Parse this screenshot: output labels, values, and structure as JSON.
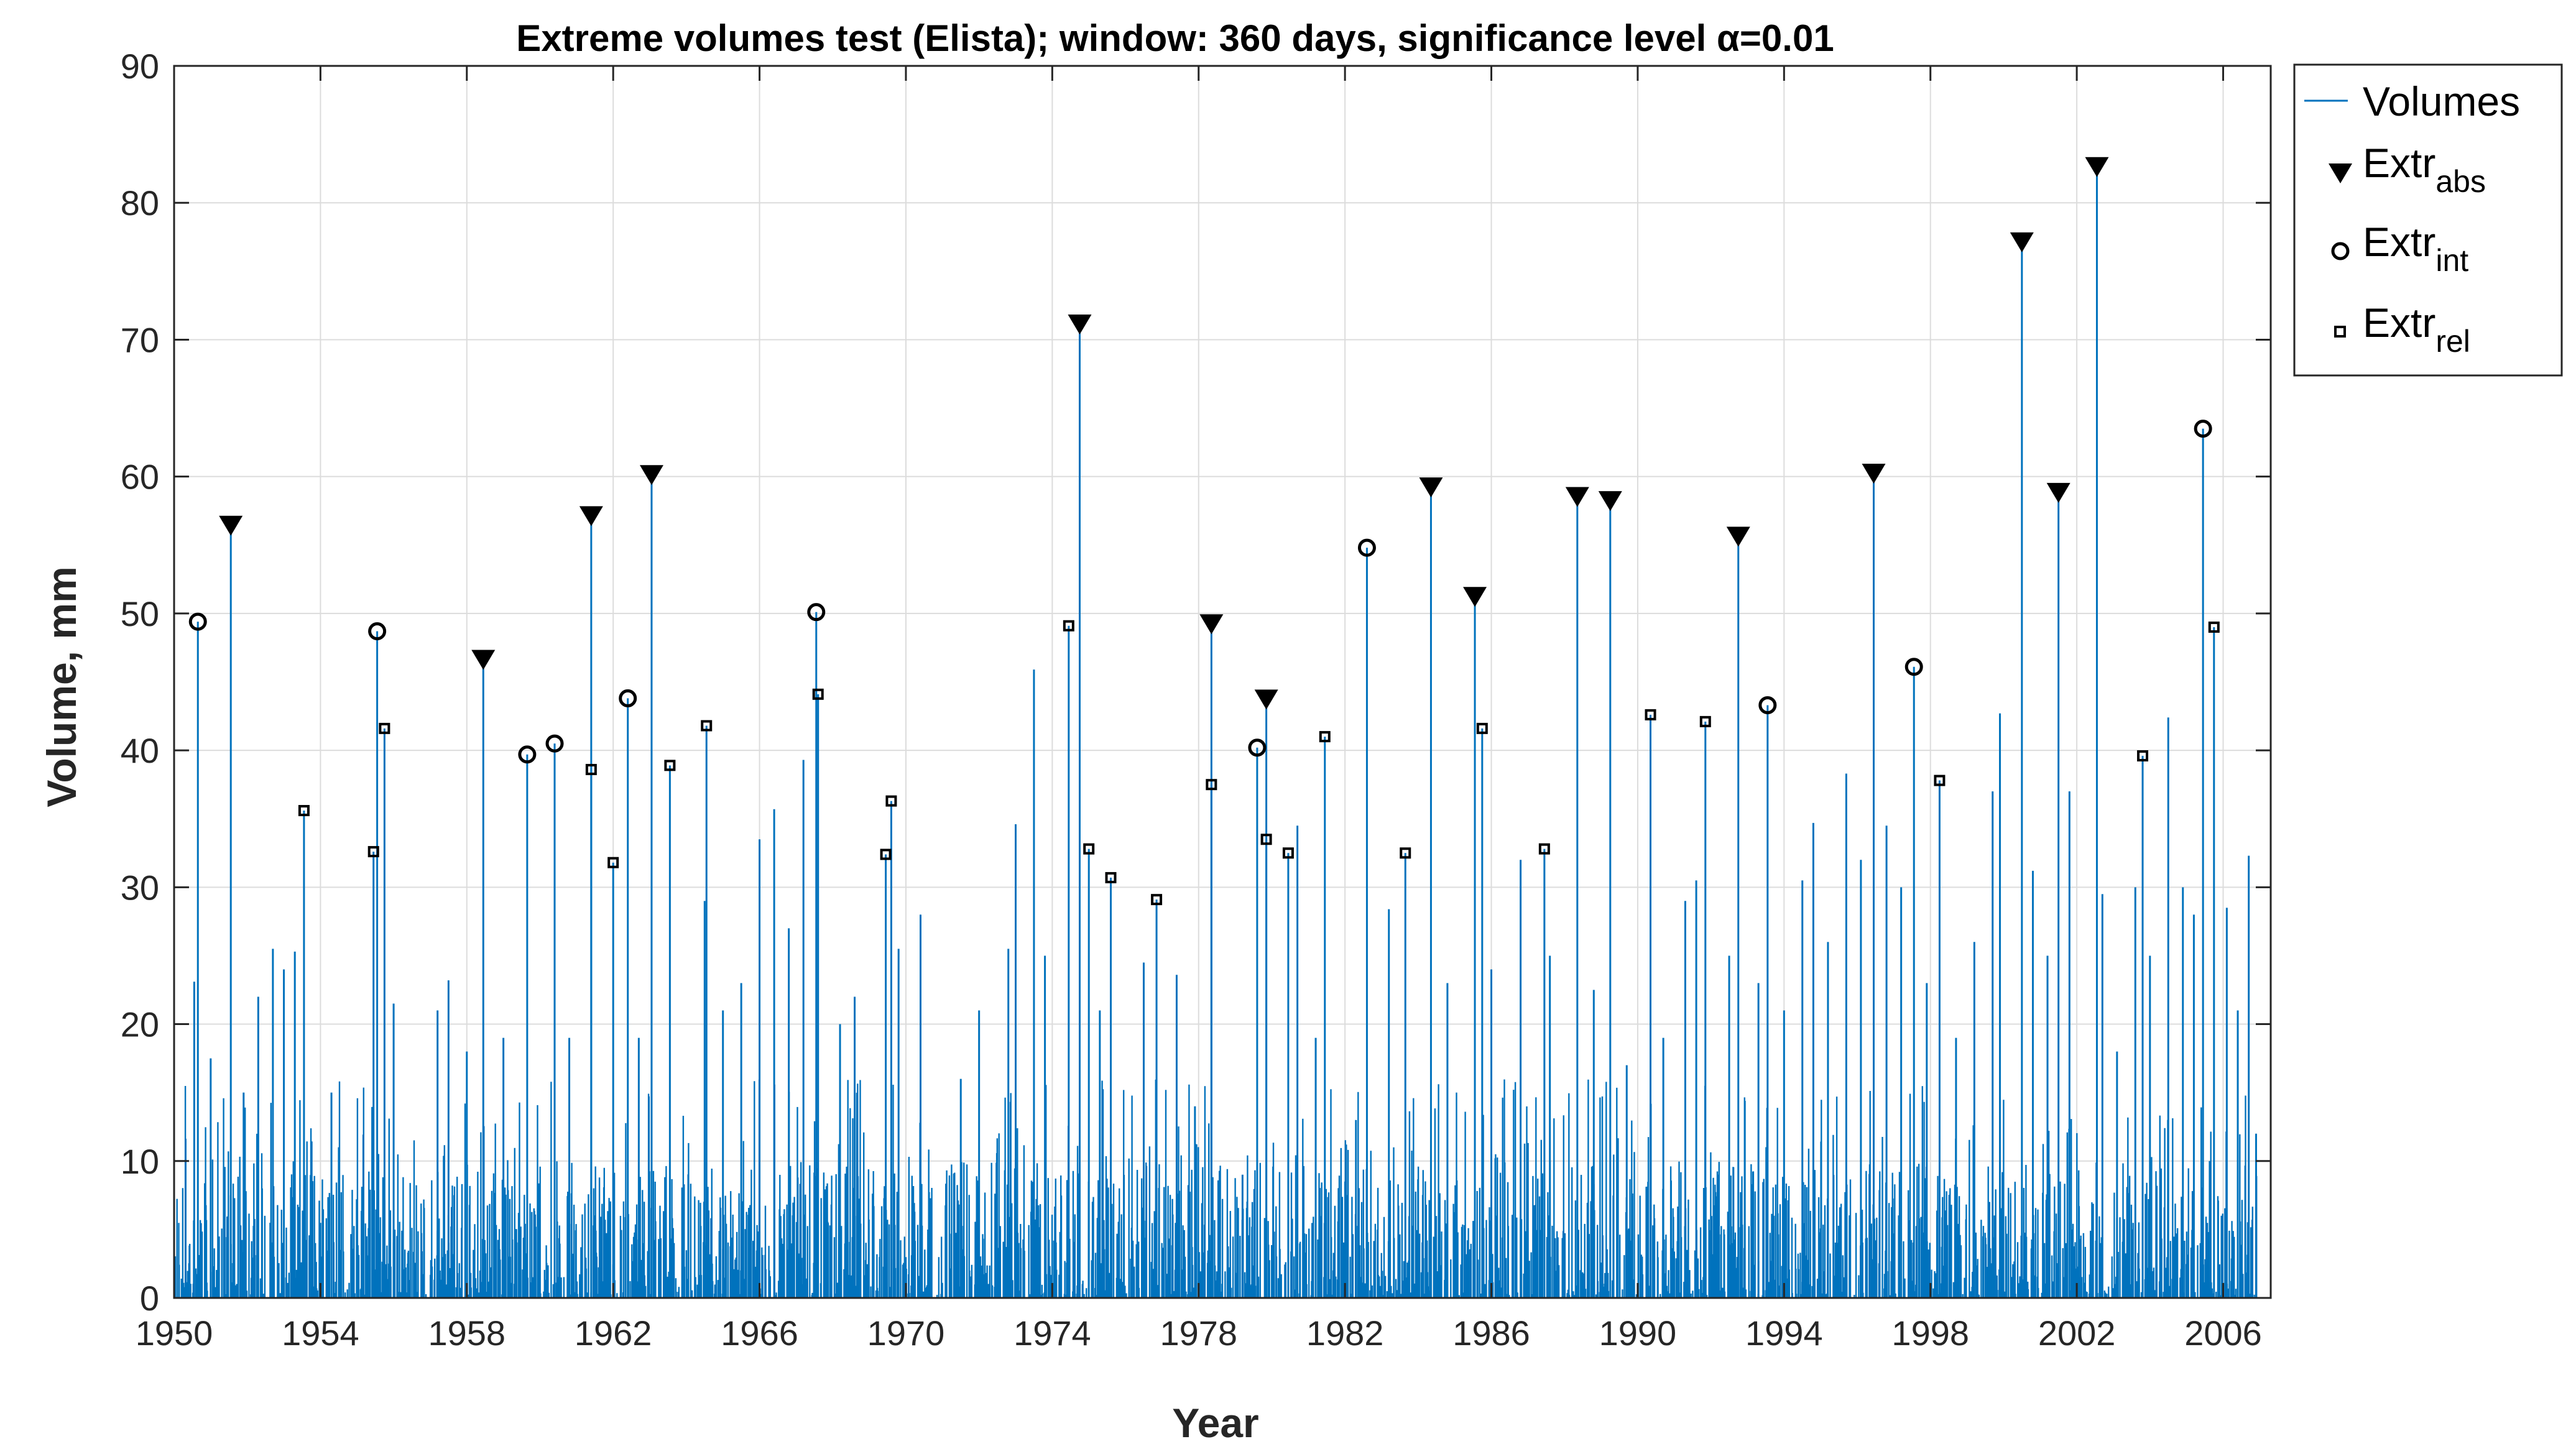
{
  "chart_data": {
    "type": "line",
    "title": "Extreme volumes test (Elista); window: 360 days, significance level α=0.01",
    "xlabel": "Year",
    "ylabel": "Volume, mm",
    "xlim": [
      1950,
      2007.3
    ],
    "ylim": [
      0,
      90
    ],
    "xticks": [
      1950,
      1954,
      1958,
      1962,
      1966,
      1970,
      1974,
      1978,
      1982,
      1986,
      1990,
      1994,
      1998,
      2002,
      2006
    ],
    "yticks": [
      0,
      10,
      20,
      30,
      40,
      50,
      60,
      70,
      80,
      90
    ],
    "grid": true,
    "legend_position": "outside-top-right",
    "colors": {
      "volumes": "#0072BD",
      "markers": "#000000",
      "grid": "#dcdcdc",
      "axis": "#262626"
    },
    "legend": [
      {
        "key": "volumes",
        "text": "Volumes",
        "sub": ""
      },
      {
        "key": "abs",
        "text": "Extr",
        "sub": "abs"
      },
      {
        "key": "int",
        "text": "Extr",
        "sub": "int"
      },
      {
        "key": "rel",
        "text": "Extr",
        "sub": "rel"
      }
    ],
    "series": [
      {
        "name": "Extr_abs",
        "marker": "triangle-down",
        "points": [
          [
            1951.55,
            56.5
          ],
          [
            1958.45,
            46.7
          ],
          [
            1961.4,
            57.2
          ],
          [
            1963.05,
            60.2
          ],
          [
            1974.75,
            71.2
          ],
          [
            1978.35,
            49.3
          ],
          [
            1979.85,
            43.8
          ],
          [
            1984.35,
            59.3
          ],
          [
            1985.55,
            51.3
          ],
          [
            1988.35,
            58.6
          ],
          [
            1989.25,
            58.3
          ],
          [
            1992.75,
            55.7
          ],
          [
            1996.45,
            60.3
          ],
          [
            2000.5,
            77.2
          ],
          [
            2001.5,
            58.9
          ],
          [
            2002.55,
            82.7
          ]
        ]
      },
      {
        "name": "Extr_int",
        "marker": "circle",
        "points": [
          [
            1950.65,
            49.4
          ],
          [
            1955.55,
            48.7
          ],
          [
            1959.65,
            39.7
          ],
          [
            1960.4,
            40.5
          ],
          [
            1962.4,
            43.8
          ],
          [
            1967.55,
            50.1
          ],
          [
            1979.6,
            40.2
          ],
          [
            1982.6,
            54.8
          ],
          [
            1993.55,
            43.3
          ],
          [
            1997.55,
            46.1
          ],
          [
            2005.45,
            63.5
          ]
        ]
      },
      {
        "name": "Extr_rel",
        "marker": "square",
        "points": [
          [
            1953.55,
            35.6
          ],
          [
            1955.45,
            32.6
          ],
          [
            1955.75,
            41.6
          ],
          [
            1961.4,
            38.6
          ],
          [
            1962.0,
            31.8
          ],
          [
            1963.55,
            38.9
          ],
          [
            1964.55,
            41.8
          ],
          [
            1967.6,
            44.1
          ],
          [
            1969.45,
            32.4
          ],
          [
            1969.6,
            36.3
          ],
          [
            1974.45,
            49.1
          ],
          [
            1975.0,
            32.8
          ],
          [
            1975.6,
            30.7
          ],
          [
            1976.85,
            29.1
          ],
          [
            1978.35,
            37.5
          ],
          [
            1979.85,
            33.5
          ],
          [
            1980.45,
            32.5
          ],
          [
            1981.45,
            41.0
          ],
          [
            1983.65,
            32.5
          ],
          [
            1985.75,
            41.6
          ],
          [
            1987.45,
            32.8
          ],
          [
            1990.35,
            42.6
          ],
          [
            1991.85,
            42.1
          ],
          [
            1998.25,
            37.8
          ],
          [
            2003.8,
            39.6
          ],
          [
            2005.75,
            49.0
          ]
        ]
      }
    ],
    "volumes_extra_peaks": [
      [
        1950.55,
        23.1
      ],
      [
        1951.0,
        17.5
      ],
      [
        1951.9,
        15.0
      ],
      [
        1952.3,
        22.0
      ],
      [
        1952.7,
        25.5
      ],
      [
        1953.0,
        24.0
      ],
      [
        1953.3,
        25.3
      ],
      [
        1954.3,
        15.0
      ],
      [
        1956.0,
        21.5
      ],
      [
        1957.2,
        21.0
      ],
      [
        1957.5,
        23.2
      ],
      [
        1958.0,
        18.0
      ],
      [
        1959.0,
        19.0
      ],
      [
        1960.8,
        19.0
      ],
      [
        1962.7,
        19.0
      ],
      [
        1964.5,
        29.0
      ],
      [
        1965.0,
        21.0
      ],
      [
        1965.5,
        23.0
      ],
      [
        1966.0,
        33.5
      ],
      [
        1966.4,
        35.7
      ],
      [
        1966.8,
        27.0
      ],
      [
        1967.2,
        39.3
      ],
      [
        1968.2,
        20.0
      ],
      [
        1968.6,
        22.0
      ],
      [
        1969.8,
        25.5
      ],
      [
        1970.4,
        28.0
      ],
      [
        1971.5,
        16.0
      ],
      [
        1972.0,
        21.0
      ],
      [
        1972.8,
        25.5
      ],
      [
        1973.0,
        34.6
      ],
      [
        1973.5,
        45.9
      ],
      [
        1973.8,
        25.0
      ],
      [
        1975.3,
        21.0
      ],
      [
        1976.5,
        24.5
      ],
      [
        1977.4,
        23.6
      ],
      [
        1977.9,
        14.0
      ],
      [
        1979.2,
        9.0
      ],
      [
        1980.7,
        34.5
      ],
      [
        1981.2,
        19.0
      ],
      [
        1982.3,
        13.0
      ],
      [
        1983.2,
        28.4
      ],
      [
        1984.8,
        23.0
      ],
      [
        1986.0,
        24.0
      ],
      [
        1986.8,
        32.0
      ],
      [
        1987.6,
        25.0
      ],
      [
        1988.8,
        22.5
      ],
      [
        1989.7,
        17.0
      ],
      [
        1990.7,
        19.0
      ],
      [
        1991.3,
        29.0
      ],
      [
        1991.6,
        30.5
      ],
      [
        1992.5,
        25.0
      ],
      [
        1993.3,
        23.0
      ],
      [
        1994.0,
        21.0
      ],
      [
        1994.5,
        30.5
      ],
      [
        1994.8,
        34.7
      ],
      [
        1995.2,
        26.0
      ],
      [
        1995.7,
        38.3
      ],
      [
        1996.1,
        32.0
      ],
      [
        1996.8,
        34.5
      ],
      [
        1997.2,
        30.0
      ],
      [
        1997.9,
        23.0
      ],
      [
        1998.7,
        19.0
      ],
      [
        1999.2,
        26.0
      ],
      [
        1999.7,
        37.0
      ],
      [
        1999.9,
        42.7
      ],
      [
        2000.8,
        31.2
      ],
      [
        2001.2,
        25.0
      ],
      [
        2001.8,
        37.0
      ],
      [
        2002.7,
        29.5
      ],
      [
        2003.1,
        18.0
      ],
      [
        2003.6,
        30.0
      ],
      [
        2004.0,
        25.0
      ],
      [
        2004.5,
        42.4
      ],
      [
        2004.9,
        30.0
      ],
      [
        2005.2,
        28.0
      ],
      [
        2006.1,
        28.5
      ],
      [
        2006.4,
        21.0
      ],
      [
        2006.7,
        32.3
      ],
      [
        2006.9,
        12.0
      ]
    ]
  }
}
